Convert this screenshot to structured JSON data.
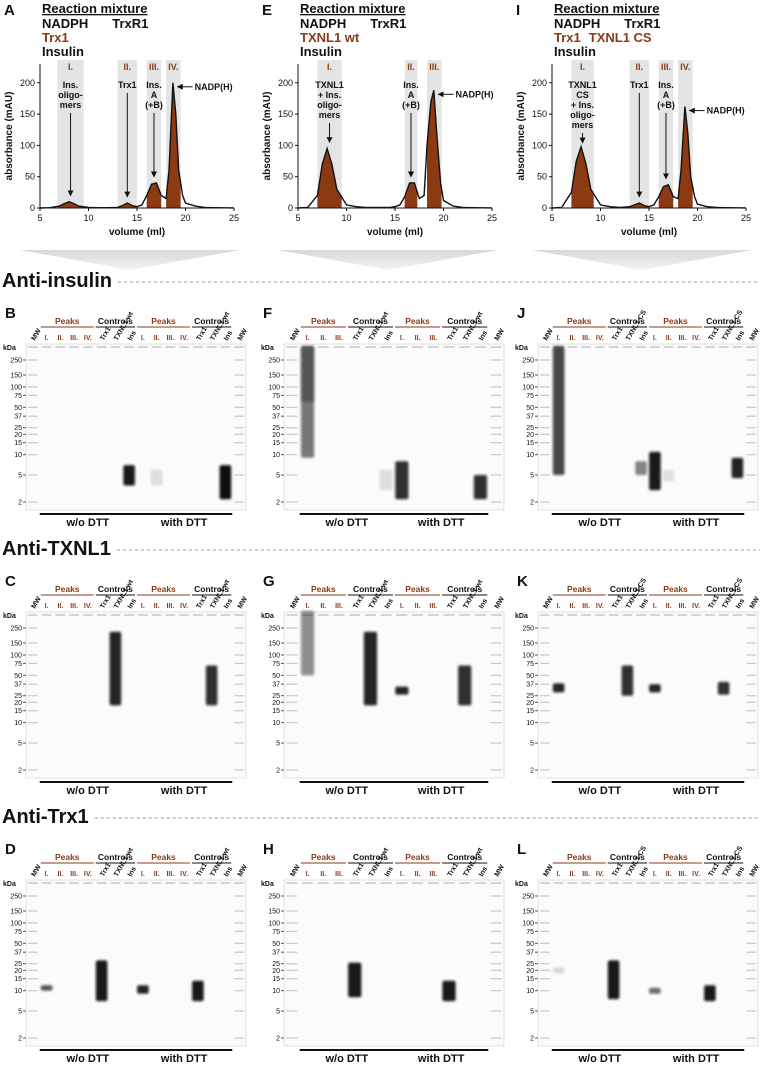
{
  "chromatograms": [
    {
      "letter": "A",
      "header": "Reaction mixture",
      "mixture": [
        [
          {
            "text": "NADPH",
            "color": "#111111"
          },
          {
            "text": "TrxR1",
            "color": "#111111"
          }
        ],
        [
          {
            "text": "Trx1",
            "color": "#8b3a14"
          }
        ],
        [
          {
            "text": "Insulin",
            "color": "#111111"
          }
        ]
      ],
      "xlabel": "volume (ml)",
      "ylabel": "absorbance (mAU)",
      "xlim": [
        5,
        25
      ],
      "ylim": [
        0,
        230
      ],
      "xticks": [
        5,
        10,
        15,
        20,
        25
      ],
      "yticks": [
        0,
        50,
        100,
        150,
        200
      ],
      "line_color": "#111111",
      "fill_color": "#8b3a14",
      "region_color": "#e4e4e4",
      "regions": [
        {
          "label": "I.",
          "from": 6.8,
          "to": 9.5,
          "note": [
            "Ins.",
            "oligo-",
            "mers"
          ]
        },
        {
          "label": "II.",
          "from": 13,
          "to": 15,
          "note": [
            "Trx1"
          ]
        },
        {
          "label": "III.",
          "from": 16,
          "to": 17.5,
          "note": [
            "Ins.",
            "A",
            "(+B)"
          ]
        },
        {
          "label": "IV.",
          "from": 18,
          "to": 19.5,
          "note": [
            "NADP(H)"
          ]
        }
      ],
      "trace": {
        "x": [
          5,
          6,
          7,
          7.5,
          8,
          8.5,
          9,
          10,
          11,
          12,
          13,
          13.5,
          14,
          14.5,
          15,
          15.5,
          16,
          16.5,
          17,
          17.5,
          18,
          18.3,
          18.7,
          19,
          19.3,
          19.7,
          20,
          21,
          22,
          23,
          24,
          25
        ],
        "y": [
          0,
          0.5,
          3,
          7,
          10,
          7,
          3,
          1,
          0.5,
          0.5,
          1,
          4,
          8,
          4,
          2,
          5,
          20,
          38,
          40,
          20,
          15,
          60,
          200,
          150,
          60,
          20,
          8,
          3,
          1,
          0.5,
          0.3,
          0.2
        ]
      }
    },
    {
      "letter": "E",
      "header": "Reaction mixture",
      "mixture": [
        [
          {
            "text": "NADPH",
            "color": "#111111"
          },
          {
            "text": "TrxR1",
            "color": "#111111"
          }
        ],
        [
          {
            "text": "TXNL1 wt",
            "color": "#8b3a14"
          }
        ],
        [
          {
            "text": "Insulin",
            "color": "#111111"
          }
        ]
      ],
      "xlabel": "volume (ml)",
      "ylabel": "absorbance (mAU)",
      "xlim": [
        5,
        25
      ],
      "ylim": [
        0,
        230
      ],
      "xticks": [
        5,
        10,
        15,
        20,
        25
      ],
      "yticks": [
        0,
        50,
        100,
        150,
        200
      ],
      "line_color": "#111111",
      "fill_color": "#8b3a14",
      "region_color": "#e4e4e4",
      "regions": [
        {
          "label": "I.",
          "from": 7,
          "to": 9.5,
          "note": [
            "TXNL1",
            "+ Ins.",
            "oligo-",
            "mers"
          ]
        },
        {
          "label": "II.",
          "from": 16,
          "to": 17.3,
          "note": [
            "Ins.",
            "A",
            "(+B)"
          ]
        },
        {
          "label": "III.",
          "from": 18.3,
          "to": 19.8,
          "note": [
            "NADP(H)"
          ]
        }
      ],
      "trace": {
        "x": [
          5,
          6,
          7,
          7.5,
          8,
          8.5,
          9,
          10,
          11,
          12,
          13,
          13.5,
          14,
          14.5,
          15,
          15.5,
          16,
          16.5,
          17,
          17.5,
          18,
          18.3,
          18.7,
          19,
          19.3,
          19.7,
          20,
          21,
          22,
          23,
          24,
          25
        ],
        "y": [
          0,
          1,
          20,
          70,
          95,
          70,
          30,
          5,
          2,
          1,
          1,
          1,
          1,
          1,
          2,
          5,
          18,
          40,
          40,
          15,
          20,
          100,
          170,
          188,
          120,
          40,
          12,
          3,
          1,
          0.5,
          0.3,
          0.2
        ]
      }
    },
    {
      "letter": "I",
      "header": "Reaction mixture",
      "mixture": [
        [
          {
            "text": "NADPH",
            "color": "#111111"
          },
          {
            "text": "TrxR1",
            "color": "#111111"
          }
        ],
        [
          {
            "text": "Trx1",
            "color": "#8b3a14"
          },
          {
            "text": "TXNL1 CS",
            "color": "#8b3a14"
          }
        ],
        [
          {
            "text": "Insulin",
            "color": "#111111"
          }
        ]
      ],
      "xlabel": "volume (ml)",
      "ylabel": "absorbance (mAU)",
      "xlim": [
        5,
        25
      ],
      "ylim": [
        0,
        230
      ],
      "xticks": [
        5,
        10,
        15,
        20,
        25
      ],
      "yticks": [
        0,
        50,
        100,
        150,
        200
      ],
      "line_color": "#111111",
      "fill_color": "#8b3a14",
      "region_color": "#e4e4e4",
      "regions": [
        {
          "label": "I.",
          "from": 7,
          "to": 9.3,
          "note": [
            "TXNL1",
            "CS",
            "+ Ins.",
            "oligo-",
            "mers"
          ]
        },
        {
          "label": "II.",
          "from": 13,
          "to": 15,
          "note": [
            "Trx1"
          ]
        },
        {
          "label": "III.",
          "from": 16,
          "to": 17.5,
          "note": [
            "Ins.",
            "A",
            "(+B)"
          ]
        },
        {
          "label": "IV.",
          "from": 18,
          "to": 19.5,
          "note": [
            "NADP(H)"
          ]
        }
      ],
      "trace": {
        "x": [
          5,
          6,
          7,
          7.5,
          8,
          8.5,
          9,
          10,
          11,
          12,
          13,
          13.5,
          14,
          14.5,
          15,
          15.5,
          16,
          16.5,
          17,
          17.5,
          18,
          18.3,
          18.7,
          19,
          19.3,
          19.7,
          20,
          21,
          22,
          23,
          24,
          25
        ],
        "y": [
          0,
          1,
          25,
          75,
          98,
          70,
          30,
          5,
          2,
          1,
          2,
          5,
          8,
          4,
          2,
          5,
          18,
          34,
          37,
          18,
          15,
          60,
          162,
          120,
          50,
          18,
          6,
          2,
          1,
          0.5,
          0.3,
          0.2
        ]
      }
    }
  ],
  "blot_sections": [
    {
      "title": "Anti-insulin",
      "blots": [
        {
          "letter": "B",
          "groups": [
            {
              "text": "Peaks",
              "color": "#8b3a14"
            },
            {
              "text": "Controls",
              "color": "#111111"
            },
            {
              "text": "Peaks",
              "color": "#8b3a14"
            },
            {
              "text": "Controls",
              "color": "#111111"
            }
          ],
          "lanes": [
            "MW",
            "I.",
            "II.",
            "III.",
            "IV.",
            "Trx1",
            "TXNL1 wt",
            "Ins",
            "I.",
            "II.",
            "III.",
            "IV.",
            "Trx1",
            "TXNL1 wt",
            "Ins",
            "MW"
          ],
          "kda": "kDa",
          "markers": [
            250,
            150,
            100,
            75,
            50,
            37,
            25,
            20,
            15,
            10,
            5,
            2
          ],
          "conditions": [
            "w/o DTT",
            "with DTT"
          ]
        },
        {
          "letter": "F",
          "groups": [
            {
              "text": "Peaks",
              "color": "#8b3a14"
            },
            {
              "text": "Controls",
              "color": "#111111"
            },
            {
              "text": "Peaks",
              "color": "#8b3a14"
            },
            {
              "text": "Controls",
              "color": "#111111"
            }
          ],
          "lanes": [
            "MW",
            "I.",
            "II.",
            "III.",
            "Trx1",
            "TXNL1 wt",
            "Ins",
            "I.",
            "II.",
            "III.",
            "Trx1",
            "TXNL1 wt",
            "Ins",
            "MW"
          ],
          "kda": "kDa",
          "markers": [
            250,
            150,
            100,
            75,
            50,
            37,
            25,
            20,
            15,
            10,
            5,
            2
          ],
          "conditions": [
            "w/o DTT",
            "with DTT"
          ]
        },
        {
          "letter": "J",
          "groups": [
            {
              "text": "Peaks",
              "color": "#8b3a14"
            },
            {
              "text": "Controls",
              "color": "#111111"
            },
            {
              "text": "Peaks",
              "color": "#8b3a14"
            },
            {
              "text": "Controls",
              "color": "#111111"
            }
          ],
          "lanes": [
            "MW",
            "I.",
            "II.",
            "III.",
            "IV.",
            "Trx1",
            "TXNL1 CS",
            "Ins",
            "I.",
            "II.",
            "III.",
            "IV.",
            "Trx1",
            "TXNL1 CS",
            "Ins",
            "MW"
          ],
          "kda": "kDa",
          "markers": [
            250,
            150,
            100,
            75,
            50,
            37,
            25,
            20,
            15,
            10,
            5,
            2
          ],
          "conditions": [
            "w/o DTT",
            "with DTT"
          ]
        }
      ]
    },
    {
      "title": "Anti-TXNL1",
      "blots": [
        {
          "letter": "C",
          "groups": [
            {
              "text": "Peaks",
              "color": "#8b3a14"
            },
            {
              "text": "Controls",
              "color": "#111111"
            },
            {
              "text": "Peaks",
              "color": "#8b3a14"
            },
            {
              "text": "Controls",
              "color": "#111111"
            }
          ],
          "lanes": [
            "MW",
            "I.",
            "II.",
            "III.",
            "IV.",
            "Trx1",
            "TXNL1 wt",
            "Ins",
            "I.",
            "II.",
            "III.",
            "IV.",
            "Trx1",
            "TXNL1 wt",
            "Ins",
            "MW"
          ],
          "kda": "kDa",
          "markers": [
            250,
            150,
            100,
            75,
            50,
            37,
            25,
            20,
            15,
            10,
            5,
            2
          ],
          "conditions": [
            "w/o DTT",
            "with DTT"
          ]
        },
        {
          "letter": "G",
          "groups": [
            {
              "text": "Peaks",
              "color": "#8b3a14"
            },
            {
              "text": "Controls",
              "color": "#111111"
            },
            {
              "text": "Peaks",
              "color": "#8b3a14"
            },
            {
              "text": "Controls",
              "color": "#111111"
            }
          ],
          "lanes": [
            "MW",
            "I.",
            "II.",
            "III.",
            "Trx1",
            "TXNL1 wt",
            "Ins",
            "I.",
            "II.",
            "III.",
            "Trx1",
            "TXNL1 wt",
            "Ins",
            "MW"
          ],
          "kda": "kDa",
          "markers": [
            250,
            150,
            100,
            75,
            50,
            37,
            25,
            20,
            15,
            10,
            5,
            2
          ],
          "conditions": [
            "w/o DTT",
            "with DTT"
          ]
        },
        {
          "letter": "K",
          "groups": [
            {
              "text": "Peaks",
              "color": "#8b3a14"
            },
            {
              "text": "Controls",
              "color": "#111111"
            },
            {
              "text": "Peaks",
              "color": "#8b3a14"
            },
            {
              "text": "Controls",
              "color": "#111111"
            }
          ],
          "lanes": [
            "MW",
            "I.",
            "II.",
            "III.",
            "IV.",
            "Trx1",
            "TXNL1 CS",
            "Ins",
            "I.",
            "II.",
            "III.",
            "IV.",
            "Trx1",
            "TXNL1 CS",
            "Ins",
            "MW"
          ],
          "kda": "kDa",
          "markers": [
            250,
            150,
            100,
            75,
            50,
            37,
            25,
            20,
            15,
            10,
            5,
            2
          ],
          "conditions": [
            "w/o DTT",
            "with DTT"
          ]
        }
      ]
    },
    {
      "title": "Anti-Trx1",
      "blots": [
        {
          "letter": "D",
          "groups": [
            {
              "text": "Peaks",
              "color": "#8b3a14"
            },
            {
              "text": "Controls",
              "color": "#111111"
            },
            {
              "text": "Peaks",
              "color": "#8b3a14"
            },
            {
              "text": "Controls",
              "color": "#111111"
            }
          ],
          "lanes": [
            "MW",
            "I.",
            "II.",
            "III.",
            "IV.",
            "Trx1",
            "TXNL1 wt",
            "Ins",
            "I.",
            "II.",
            "III.",
            "IV.",
            "Trx1",
            "TXNL1 wt",
            "Ins",
            "MW"
          ],
          "kda": "kDa",
          "markers": [
            250,
            150,
            100,
            75,
            50,
            37,
            25,
            20,
            15,
            10,
            5,
            2
          ],
          "conditions": [
            "w/o DTT",
            "with DTT"
          ]
        },
        {
          "letter": "H",
          "groups": [
            {
              "text": "Peaks",
              "color": "#8b3a14"
            },
            {
              "text": "Controls",
              "color": "#111111"
            },
            {
              "text": "Peaks",
              "color": "#8b3a14"
            },
            {
              "text": "Controls",
              "color": "#111111"
            }
          ],
          "lanes": [
            "MW",
            "I.",
            "II.",
            "III.",
            "Trx1",
            "TXNL1 wt",
            "Ins",
            "I.",
            "II.",
            "III.",
            "Trx1",
            "TXNL1 wt",
            "Ins",
            "MW"
          ],
          "kda": "kDa",
          "markers": [
            250,
            150,
            100,
            75,
            50,
            37,
            25,
            20,
            15,
            10,
            5,
            2
          ],
          "conditions": [
            "w/o DTT",
            "with DTT"
          ]
        },
        {
          "letter": "L",
          "groups": [
            {
              "text": "Peaks",
              "color": "#8b3a14"
            },
            {
              "text": "Controls",
              "color": "#111111"
            },
            {
              "text": "Peaks",
              "color": "#8b3a14"
            },
            {
              "text": "Controls",
              "color": "#111111"
            }
          ],
          "lanes": [
            "MW",
            "I.",
            "II.",
            "III.",
            "IV.",
            "Trx1",
            "TXNL1 CS",
            "Ins",
            "I.",
            "II.",
            "III.",
            "IV.",
            "Trx1",
            "TXNL1 CS",
            "Ins",
            "MW"
          ],
          "kda": "kDa",
          "markers": [
            250,
            150,
            100,
            75,
            50,
            37,
            25,
            20,
            15,
            10,
            5,
            2
          ],
          "conditions": [
            "w/o DTT",
            "with DTT"
          ]
        }
      ]
    }
  ]
}
